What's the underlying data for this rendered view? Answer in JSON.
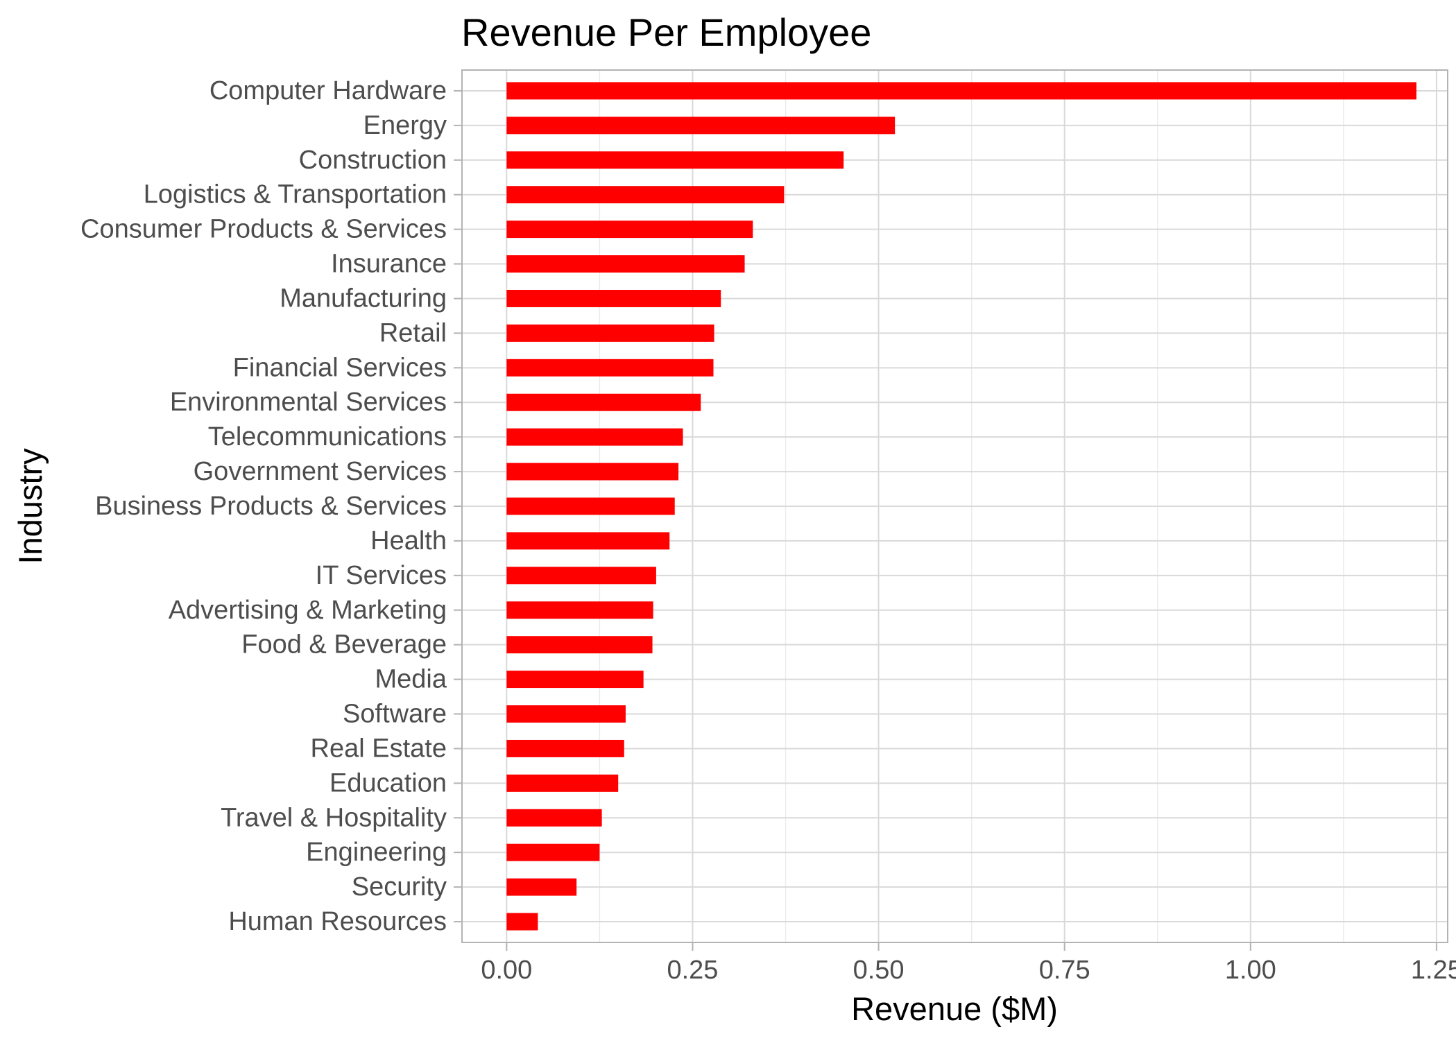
{
  "chart_data": {
    "type": "bar",
    "orientation": "horizontal",
    "title": "Revenue Per Employee",
    "xlabel": "Revenue ($M)",
    "ylabel": "Industry",
    "xlim": [
      -0.06,
      1.265
    ],
    "xticks": [
      0.0,
      0.25,
      0.5,
      0.75,
      1.0,
      1.25
    ],
    "xtick_labels": [
      "0.00",
      "0.25",
      "0.50",
      "0.75",
      "1.00",
      "1.25"
    ],
    "grid": true,
    "legend": "none",
    "bar_color": "#ff0000",
    "categories": [
      "Computer Hardware",
      "Energy",
      "Construction",
      "Logistics & Transportation",
      "Consumer Products & Services",
      "Insurance",
      "Manufacturing",
      "Retail",
      "Financial Services",
      "Environmental Services",
      "Telecommunications",
      "Government Services",
      "Business Products & Services",
      "Health",
      "IT Services",
      "Advertising & Marketing",
      "Food & Beverage",
      "Media",
      "Software",
      "Real Estate",
      "Education",
      "Travel & Hospitality",
      "Engineering",
      "Security",
      "Human Resources"
    ],
    "values": [
      1.223,
      0.522,
      0.453,
      0.373,
      0.331,
      0.32,
      0.288,
      0.279,
      0.278,
      0.261,
      0.237,
      0.231,
      0.226,
      0.219,
      0.201,
      0.197,
      0.196,
      0.184,
      0.16,
      0.158,
      0.15,
      0.128,
      0.125,
      0.094,
      0.042
    ]
  }
}
